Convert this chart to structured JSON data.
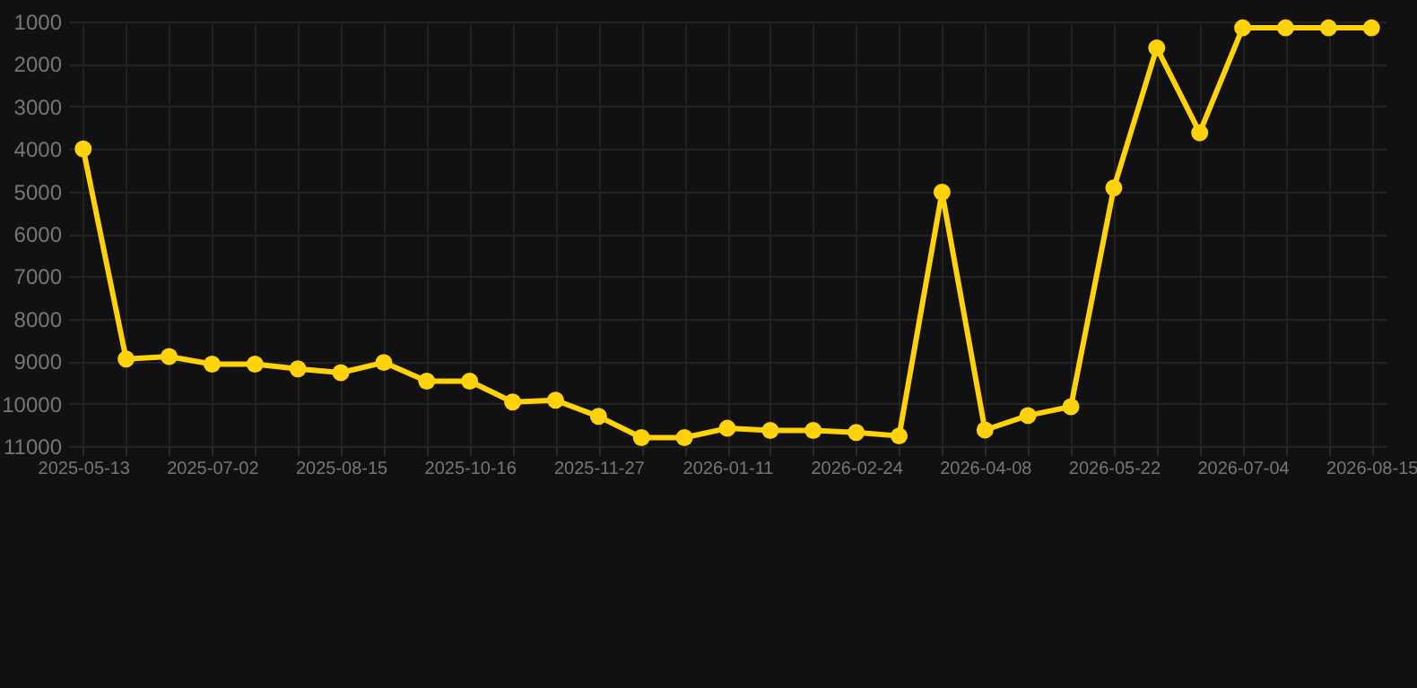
{
  "chart_data": {
    "type": "line",
    "categories": [
      "2025-05-13",
      null,
      null,
      "2025-07-02",
      null,
      null,
      "2025-08-15",
      null,
      null,
      "2025-10-16",
      null,
      null,
      "2025-11-27",
      null,
      null,
      "2026-01-11",
      null,
      null,
      "2026-02-24",
      null,
      null,
      "2026-04-08",
      null,
      null,
      "2026-05-22",
      null,
      null,
      "2026-07-04",
      null,
      null,
      "2026-08-15"
    ],
    "series": [
      {
        "color": "#ffd20a",
        "values": [
          4000,
          8950,
          8890,
          9070,
          9070,
          9180,
          9270,
          9030,
          9470,
          9470,
          9960,
          9920,
          10300,
          10800,
          10800,
          10580,
          10630,
          10630,
          10680,
          10760,
          5020,
          10620,
          10280,
          10070,
          4920,
          1620,
          3620,
          1150,
          1150,
          1150,
          1150
        ]
      }
    ],
    "ylim": [
      11000,
      1000
    ],
    "yticks": [
      1000,
      2000,
      3000,
      4000,
      5000,
      6000,
      7000,
      8000,
      9000,
      10000,
      11000
    ],
    "grid": true,
    "marker": "circle",
    "line_style": "solid"
  }
}
